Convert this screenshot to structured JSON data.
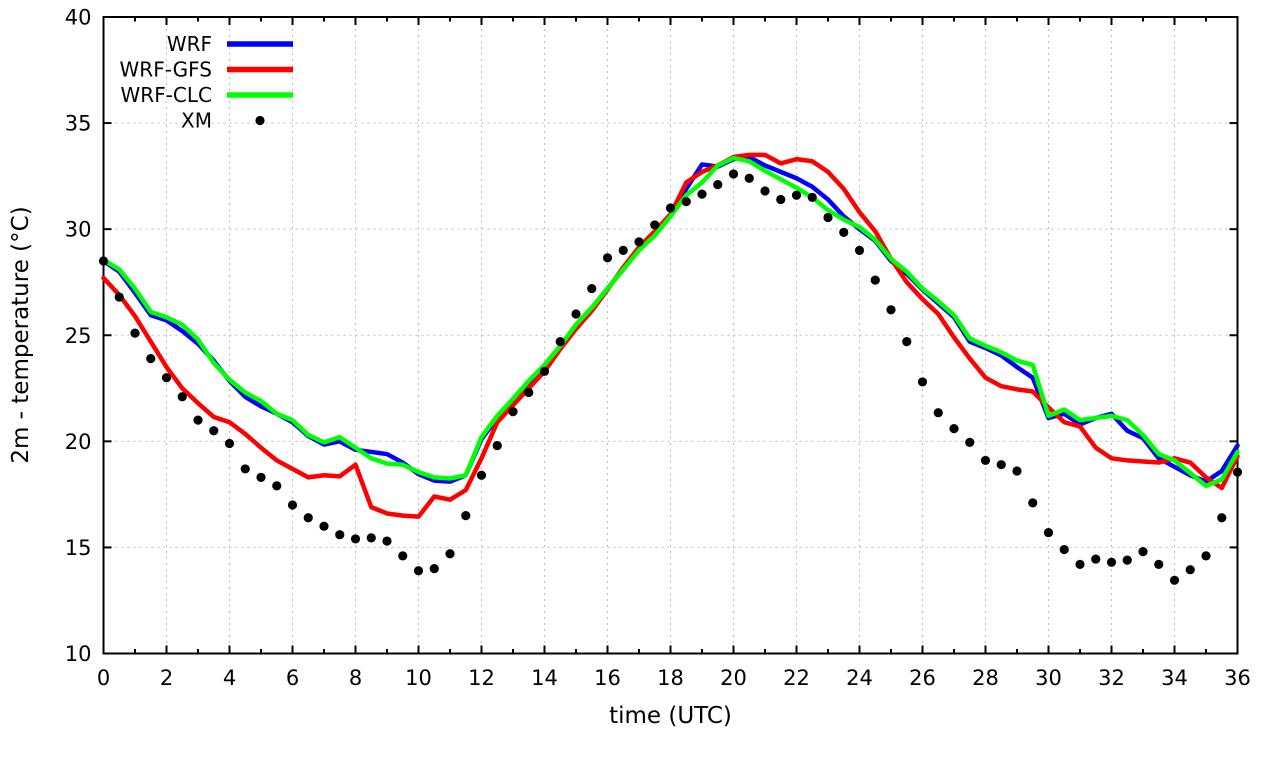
{
  "chart_data": {
    "type": "line",
    "title": "",
    "xlabel": "time (UTC)",
    "ylabel": "2m - temperature (°C)",
    "xlim": [
      0,
      36
    ],
    "ylim": [
      10,
      40
    ],
    "xticks": [
      0,
      2,
      4,
      6,
      8,
      10,
      12,
      14,
      16,
      18,
      20,
      22,
      24,
      26,
      28,
      30,
      32,
      34,
      36
    ],
    "yticks": [
      10,
      15,
      20,
      25,
      30,
      35,
      40
    ],
    "grid": true,
    "legend_position": "top-left",
    "background_color": "#ffffff",
    "axis_color": "#000000",
    "grid_color": "#bdbdbd",
    "x_start": 0,
    "x_step": 0.5,
    "series": [
      {
        "name": "WRF",
        "color": "#0000ff",
        "style": "line",
        "values": [
          28.5,
          28.0,
          27.0,
          25.95,
          25.7,
          25.2,
          24.6,
          23.8,
          22.85,
          22.1,
          21.65,
          21.3,
          20.9,
          20.25,
          19.85,
          20.0,
          19.6,
          19.5,
          19.4,
          19.0,
          18.45,
          18.15,
          18.1,
          18.4,
          20.1,
          21.1,
          21.9,
          22.7,
          23.45,
          24.45,
          25.4,
          26.25,
          27.2,
          28.1,
          29.05,
          29.8,
          30.7,
          31.9,
          33.05,
          32.95,
          33.3,
          33.4,
          33.0,
          32.7,
          32.4,
          32.0,
          31.4,
          30.6,
          30.0,
          29.45,
          28.5,
          27.9,
          27.15,
          26.5,
          25.85,
          24.7,
          24.4,
          24.05,
          23.5,
          23.0,
          21.1,
          21.3,
          20.8,
          21.1,
          21.3,
          20.5,
          20.15,
          19.2,
          18.8,
          18.4,
          18.1,
          18.6,
          19.8
        ]
      },
      {
        "name": "WRF-GFS",
        "color": "#ff0000",
        "style": "line",
        "values": [
          27.7,
          26.9,
          25.9,
          24.7,
          23.5,
          22.5,
          21.8,
          21.15,
          20.9,
          20.35,
          19.7,
          19.1,
          18.7,
          18.3,
          18.4,
          18.35,
          18.9,
          16.9,
          16.6,
          16.5,
          16.45,
          17.4,
          17.25,
          17.7,
          19.2,
          20.9,
          21.7,
          22.5,
          23.3,
          24.35,
          25.3,
          26.15,
          27.15,
          28.2,
          29.15,
          29.9,
          30.7,
          32.2,
          32.7,
          33.0,
          33.4,
          33.5,
          33.5,
          33.1,
          33.3,
          33.2,
          32.7,
          31.9,
          30.8,
          29.9,
          28.6,
          27.5,
          26.7,
          26.0,
          24.9,
          23.9,
          23.0,
          22.6,
          22.45,
          22.35,
          21.6,
          20.9,
          20.7,
          19.7,
          19.2,
          19.1,
          19.05,
          19.0,
          19.2,
          19.0,
          18.3,
          17.8,
          19.3
        ]
      },
      {
        "name": "WRF-CLC",
        "color": "#00ff00",
        "style": "line",
        "values": [
          28.55,
          28.1,
          27.2,
          26.1,
          25.85,
          25.5,
          24.8,
          23.7,
          22.9,
          22.3,
          21.9,
          21.3,
          21.0,
          20.3,
          19.95,
          20.2,
          19.7,
          19.2,
          18.95,
          18.9,
          18.55,
          18.3,
          18.25,
          18.4,
          20.2,
          21.2,
          22.0,
          22.85,
          23.6,
          24.5,
          25.5,
          26.3,
          27.2,
          28.1,
          29.0,
          29.7,
          30.6,
          31.6,
          32.2,
          33.0,
          33.35,
          33.2,
          32.75,
          32.35,
          31.95,
          31.5,
          30.9,
          30.45,
          30.1,
          29.5,
          28.6,
          28.0,
          27.2,
          26.6,
          25.95,
          24.85,
          24.5,
          24.2,
          23.8,
          23.6,
          21.2,
          21.5,
          21.0,
          21.1,
          21.2,
          21.0,
          20.3,
          19.4,
          19.1,
          18.5,
          17.9,
          18.2,
          19.5
        ]
      },
      {
        "name": "XM",
        "color": "#000000",
        "style": "points",
        "values": [
          28.5,
          26.8,
          25.1,
          23.9,
          23.0,
          22.1,
          21.0,
          20.5,
          19.9,
          18.7,
          18.3,
          17.9,
          17.0,
          16.4,
          16.0,
          15.6,
          15.4,
          15.45,
          15.3,
          14.6,
          13.9,
          14.0,
          14.7,
          16.5,
          18.4,
          19.8,
          21.4,
          22.3,
          23.3,
          24.7,
          26.0,
          27.2,
          28.65,
          29.0,
          29.4,
          30.2,
          31.0,
          31.3,
          31.65,
          32.1,
          32.6,
          32.4,
          31.8,
          31.4,
          31.6,
          31.5,
          30.55,
          29.85,
          29.0,
          27.6,
          26.2,
          24.7,
          22.8,
          21.35,
          20.6,
          19.95,
          19.1,
          18.9,
          18.6,
          17.1,
          15.7,
          14.9,
          14.2,
          14.45,
          14.3,
          14.4,
          14.8,
          14.2,
          13.45,
          13.95,
          14.6,
          16.4,
          18.55
        ]
      }
    ]
  }
}
